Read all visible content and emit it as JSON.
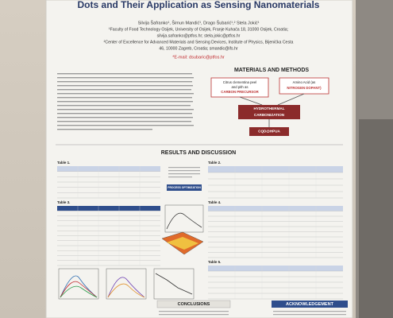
{
  "header": {
    "title": "Dots and Their Application as Sensing Nanomaterials",
    "authors": "Silvija Šafranko¹, Šimun Mandić¹, Drago Šubarić¹,² Stela Jokić¹",
    "affiliations": [
      "¹Faculty of Food Technology Osijek, University of Osijek, Franje Kuhača 18, 31000 Osijek, Croatia;",
      "silvija.safranko@ptfos.hr; stela.jokic@ptfos.hr",
      "²Center of Excellence for Advanced Materials and Sensing Devices, Institute of Physics, Bijenička Cesta",
      "46, 10000 Zagreb, Croatia; smandic@ifs.hr"
    ],
    "email": "*E-mail: dsubaric@ptfos.hr"
  },
  "sections": {
    "methods": "MATERIALS AND METHODS",
    "results": "RESULTS AND DISCUSSION",
    "conclusions": "CONCLUSIONS",
    "acknowledgement": "ACKNOWLEDGEMENT"
  },
  "flow": {
    "precursor": [
      "Citrus clementina peel",
      "and pith as",
      "CARBON PRECURSOR"
    ],
    "dopant": [
      "Amino Acid (as",
      "NITROGEN DOPANT)"
    ],
    "process": [
      "HYDROTHERMAL",
      "CARBONIZATION"
    ],
    "product": "CQD@HPUA",
    "optimization": "PROCESS OPTIMIZATION"
  },
  "tables": [
    "Table 1.",
    "Table 2.",
    "Table 3.",
    "Table 4.",
    "Table 5."
  ]
}
